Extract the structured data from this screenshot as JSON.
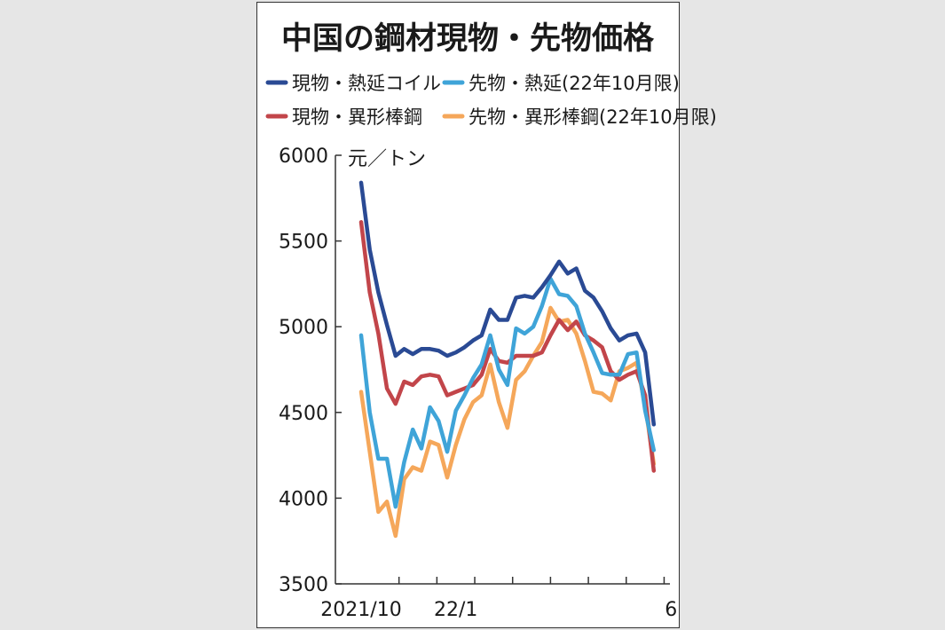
{
  "chart_data": {
    "type": "line",
    "title": "中国の鋼材現物・先物価格",
    "unit_label": "元／トン",
    "ylim": [
      3500,
      6000
    ],
    "yticks": [
      6000,
      5500,
      5000,
      4500,
      4000,
      3500
    ],
    "x_index_range": [
      0,
      40
    ],
    "x_labels": [
      {
        "label": "2021/10",
        "index": 0
      },
      {
        "label": "22/1",
        "index": 11
      },
      {
        "label": "6",
        "index": 36
      }
    ],
    "series": [
      {
        "name": "現物・熱延コイル",
        "color": "#2a4a94",
        "values": [
          5840,
          5450,
          5200,
          5010,
          4830,
          4870,
          4840,
          4870,
          4870,
          4860,
          4830,
          4850,
          4880,
          4920,
          4950,
          5100,
          5040,
          5040,
          5170,
          5180,
          5170,
          5230,
          5300,
          5380,
          5310,
          5340,
          5210,
          5170,
          5090,
          4990,
          4920,
          4950,
          4960,
          4850,
          4430
        ]
      },
      {
        "name": "先物・熱延(22年10月限)",
        "color": "#3fa4d8",
        "values": [
          4950,
          4500,
          4230,
          4230,
          3950,
          4210,
          4400,
          4290,
          4530,
          4450,
          4270,
          4510,
          4600,
          4700,
          4780,
          4950,
          4750,
          4660,
          4990,
          4960,
          5000,
          5120,
          5280,
          5190,
          5180,
          5120,
          4960,
          4850,
          4730,
          4720,
          4720,
          4840,
          4850,
          4510,
          4280
        ]
      },
      {
        "name": "現物・異形棒鋼",
        "color": "#c2454a",
        "values": [
          5610,
          5200,
          4960,
          4640,
          4550,
          4680,
          4660,
          4710,
          4720,
          4710,
          4600,
          4620,
          4640,
          4660,
          4720,
          4870,
          4800,
          4790,
          4830,
          4830,
          4830,
          4850,
          4950,
          5040,
          4980,
          5030,
          4950,
          4920,
          4880,
          4740,
          4690,
          4720,
          4740,
          4600,
          4160
        ]
      },
      {
        "name": "先物・異形棒鋼(22年10月限)",
        "color": "#f5a75a",
        "values": [
          4620,
          4270,
          3920,
          3980,
          3780,
          4110,
          4180,
          4160,
          4330,
          4310,
          4120,
          4310,
          4460,
          4560,
          4600,
          4780,
          4560,
          4410,
          4690,
          4740,
          4830,
          4910,
          5110,
          5030,
          5040,
          4960,
          4800,
          4620,
          4610,
          4570,
          4740,
          4760,
          4790,
          4540,
          4200
        ]
      }
    ],
    "grid": false,
    "legend_position": "top"
  }
}
